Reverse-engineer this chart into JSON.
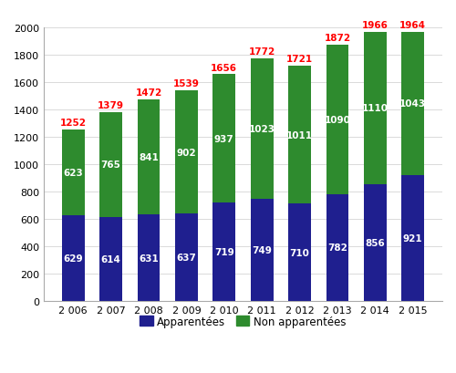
{
  "years": [
    "2 006",
    "2 007",
    "2 008",
    "2 009",
    "2 010",
    "2 011",
    "2 012",
    "2 013",
    "2 014",
    "2 015"
  ],
  "apparentees": [
    629,
    614,
    631,
    637,
    719,
    749,
    710,
    782,
    856,
    921
  ],
  "non_apparentees": [
    623,
    765,
    841,
    902,
    937,
    1023,
    1011,
    1090,
    1110,
    1043
  ],
  "totals": [
    1252,
    1379,
    1472,
    1539,
    1656,
    1772,
    1721,
    1872,
    1966,
    1964
  ],
  "color_apparentees": "#1F1F8F",
  "color_non_apparentees": "#2E8B2E",
  "color_total_labels": "#FF0000",
  "color_inner_labels": "#FFFFFF",
  "ylim": [
    0,
    2000
  ],
  "yticks": [
    0,
    200,
    400,
    600,
    800,
    1000,
    1200,
    1400,
    1600,
    1800,
    2000
  ],
  "legend_apparentees": "Apparentées",
  "legend_non_apparentees": "Non apparentées",
  "bar_width": 0.6,
  "figsize": [
    5.0,
    4.1
  ],
  "dpi": 100,
  "bg_color": "#FFFFFF",
  "spine_color": "#AAAAAA"
}
